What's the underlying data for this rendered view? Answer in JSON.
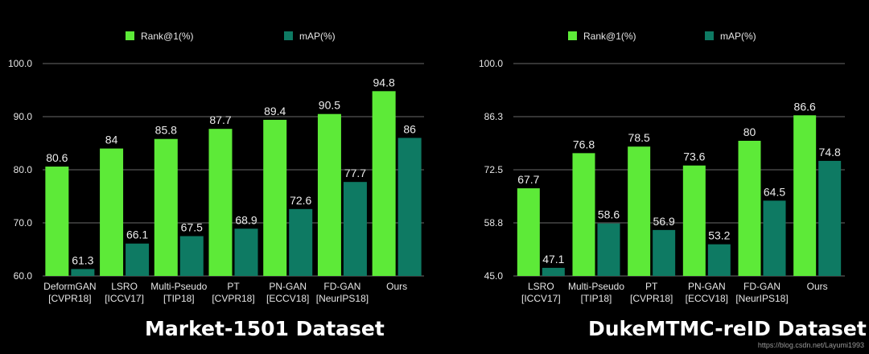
{
  "colors": {
    "rank1": "#5DEA38",
    "map": "#0E7A63",
    "grid": "#6a6a6a",
    "text": "#e6e6e6",
    "background": "#000000"
  },
  "chart_data": [
    {
      "type": "bar",
      "title": "Market-1501 Dataset",
      "legend_position": "top",
      "categories": [
        [
          "DeformGAN",
          "[CVPR18]"
        ],
        [
          "LSRO",
          "[ICCV17]"
        ],
        [
          "Multi-Pseudo",
          "[TIP18]"
        ],
        [
          "PT",
          "[CVPR18]"
        ],
        [
          "PN-GAN",
          "[ECCV18]"
        ],
        [
          "FD-GAN",
          "[NeurIPS18]"
        ],
        [
          "Ours"
        ]
      ],
      "series": [
        {
          "name": "Rank@1(%)",
          "color": "#5DEA38",
          "values": [
            80.6,
            84,
            85.8,
            87.7,
            89.4,
            90.5,
            94.8
          ],
          "labels": [
            "80.6",
            "84",
            "85.8",
            "87.7",
            "89.4",
            "90.5",
            "94.8"
          ]
        },
        {
          "name": "mAP(%)",
          "color": "#0E7A63",
          "values": [
            61.3,
            66.1,
            67.5,
            68.9,
            72.6,
            77.7,
            86
          ],
          "labels": [
            "61.3",
            "66.1",
            "67.5",
            "68.9",
            "72.6",
            "77.7",
            "86"
          ]
        }
      ],
      "ylim": [
        60,
        100
      ],
      "yticks": [
        60,
        70,
        80,
        90,
        100
      ],
      "ytick_labels": [
        "60.0",
        "70.0",
        "80.0",
        "90.0",
        "100.0"
      ],
      "grid": true
    },
    {
      "type": "bar",
      "title": "DukeMTMC-reID Dataset",
      "legend_position": "top",
      "categories": [
        [
          "LSRO",
          "[ICCV17]"
        ],
        [
          "Multi-Pseudo",
          "[TIP18]"
        ],
        [
          "PT",
          "[CVPR18]"
        ],
        [
          "PN-GAN",
          "[ECCV18]"
        ],
        [
          "FD-GAN",
          "[NeurIPS18]"
        ],
        [
          "Ours"
        ]
      ],
      "series": [
        {
          "name": "Rank@1(%)",
          "color": "#5DEA38",
          "values": [
            67.7,
            76.8,
            78.5,
            73.6,
            80,
            86.6
          ],
          "labels": [
            "67.7",
            "76.8",
            "78.5",
            "73.6",
            "80",
            "86.6"
          ]
        },
        {
          "name": "mAP(%)",
          "color": "#0E7A63",
          "values": [
            47.1,
            58.6,
            56.9,
            53.2,
            64.5,
            74.8
          ],
          "labels": [
            "47.1",
            "58.6",
            "56.9",
            "53.2",
            "64.5",
            "74.8"
          ]
        }
      ],
      "ylim": [
        45,
        100
      ],
      "yticks": [
        45,
        58.75,
        72.5,
        86.25,
        100
      ],
      "ytick_labels": [
        "45.0",
        "58.8",
        "72.5",
        "86.3",
        "100.0"
      ],
      "grid": true
    }
  ],
  "watermark": "https://blog.csdn.net/Layumi1993"
}
